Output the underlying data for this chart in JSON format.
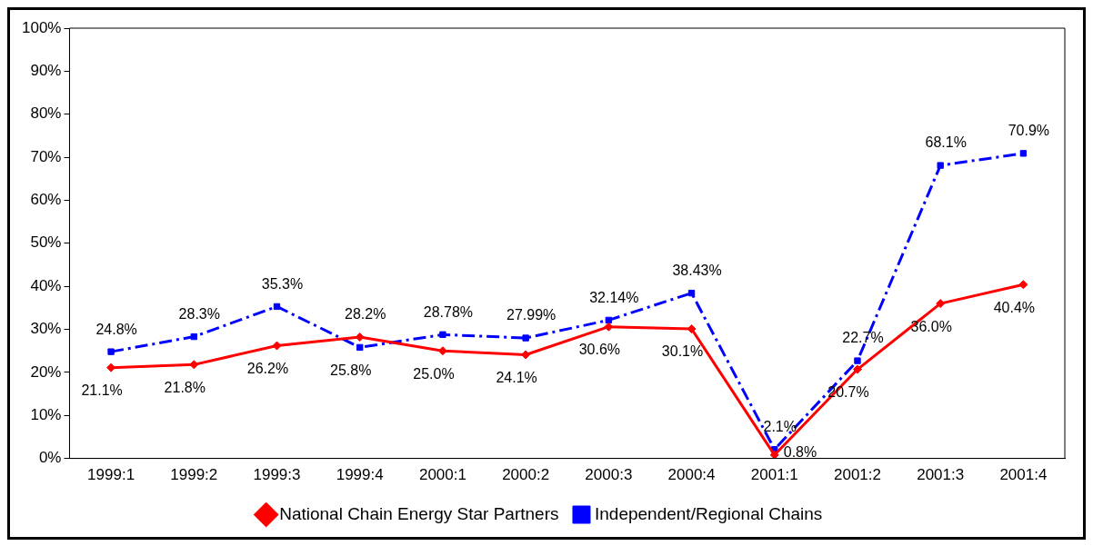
{
  "chart_data": {
    "type": "line",
    "categories": [
      "1999:1",
      "1999:2",
      "1999:3",
      "1999:4",
      "2000:1",
      "2000:2",
      "2000:3",
      "2000:4",
      "2001:1",
      "2001:2",
      "2001:3",
      "2001:4"
    ],
    "series": [
      {
        "name": "National Chain Energy Star Partners",
        "color": "#ff0000",
        "marker": "diamond",
        "line_style": "solid",
        "values": [
          21.1,
          21.8,
          26.2,
          28.2,
          25.0,
          24.1,
          30.6,
          30.1,
          0.8,
          20.7,
          36.0,
          40.4
        ],
        "value_labels": [
          "21.1%",
          "21.8%",
          "26.2%",
          "28.2%",
          "25.0%",
          "24.1%",
          "30.6%",
          "30.1%",
          "0.8%",
          "20.7%",
          "36.0%",
          "40.4%"
        ]
      },
      {
        "name": "Independent/Regional Chains",
        "color": "#0000ff",
        "marker": "square",
        "line_style": "dashed",
        "values": [
          24.8,
          28.3,
          35.3,
          25.8,
          28.78,
          27.99,
          32.14,
          38.43,
          2.1,
          22.7,
          68.1,
          70.9
        ],
        "value_labels": [
          "24.8%",
          "28.3%",
          "35.3%",
          "25.8%",
          "28.78%",
          "27.99%",
          "32.14%",
          "38.43%",
          "2.1%",
          "22.7%",
          "68.1%",
          "70.9%"
        ]
      }
    ],
    "ylim": [
      0,
      100
    ],
    "yticks": [
      {
        "value": 0,
        "label": "0%"
      },
      {
        "value": 10,
        "label": "10%"
      },
      {
        "value": 20,
        "label": "20%"
      },
      {
        "value": 30,
        "label": "30%"
      },
      {
        "value": 40,
        "label": "40%"
      },
      {
        "value": 50,
        "label": "50%"
      },
      {
        "value": 60,
        "label": "60%"
      },
      {
        "value": 70,
        "label": "70%"
      },
      {
        "value": 80,
        "label": "80%"
      },
      {
        "value": 90,
        "label": "90%"
      },
      {
        "value": 100,
        "label": "100%"
      }
    ],
    "grid": false,
    "legend": "bottom"
  }
}
